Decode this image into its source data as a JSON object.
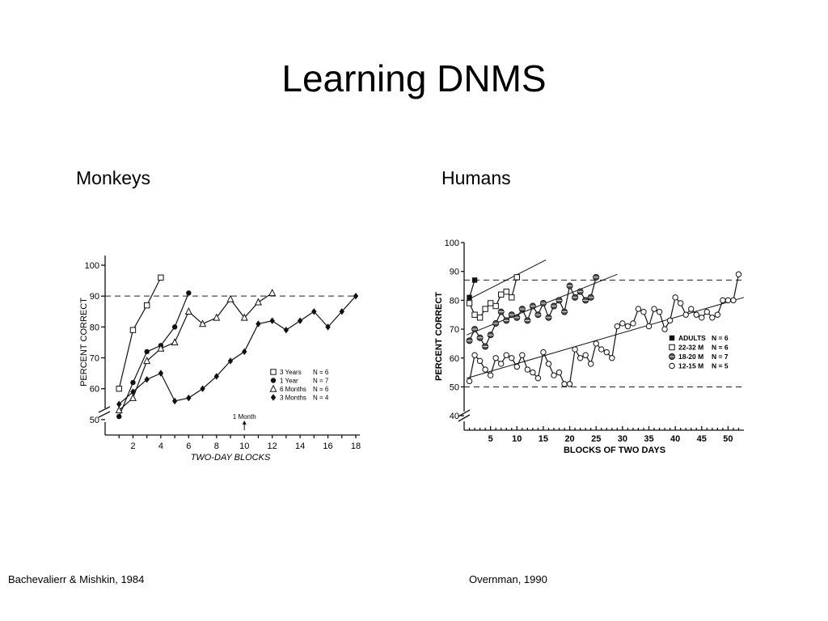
{
  "slide": {
    "title": "Learning DNMS",
    "left_heading": "Monkeys",
    "right_heading": "Humans",
    "left_citation": "Bachevalierr & Mishkin, 1984",
    "right_citation": "Overnman, 1990"
  },
  "chart_data": [
    {
      "type": "line",
      "xlabel": "TWO-DAY BLOCKS",
      "ylabel": "PERCENT CORRECT",
      "xlim": [
        0,
        18
      ],
      "ylim": [
        45,
        100
      ],
      "xticks": [
        2,
        4,
        6,
        8,
        10,
        12,
        14,
        16,
        18
      ],
      "yticks": [
        50,
        60,
        70,
        80,
        90,
        100
      ],
      "criterion": 90,
      "annotation": {
        "text": "1 Month",
        "x": 10
      },
      "legend_position": "bottom-right",
      "grid": false,
      "series": [
        {
          "name": "3 Years",
          "n": "N = 6",
          "marker": "open-square",
          "x": [
            1,
            2,
            3,
            4
          ],
          "y": [
            60,
            79,
            87,
            96
          ]
        },
        {
          "name": "1 Year",
          "n": "N = 7",
          "marker": "filled-circle",
          "x": [
            1,
            2,
            3,
            4,
            5,
            6
          ],
          "y": [
            51,
            62,
            72,
            74,
            80,
            91
          ]
        },
        {
          "name": "6 Months",
          "n": "N = 6",
          "marker": "open-triangle",
          "x": [
            1,
            2,
            3,
            4,
            5,
            6,
            7,
            8,
            9,
            10,
            11,
            12
          ],
          "y": [
            53,
            57,
            69,
            73,
            75,
            85,
            81,
            83,
            89,
            83,
            88,
            91
          ]
        },
        {
          "name": "3 Months",
          "n": "N = 4",
          "marker": "filled-diamond",
          "x": [
            1,
            2,
            3,
            4,
            5,
            6,
            7,
            8,
            9,
            10,
            11,
            12,
            13,
            14,
            15,
            16,
            17,
            18
          ],
          "y": [
            55,
            59,
            63,
            65,
            56,
            57,
            60,
            64,
            69,
            72,
            81,
            82,
            79,
            82,
            85,
            80,
            85,
            90
          ]
        }
      ]
    },
    {
      "type": "line",
      "xlabel": "BLOCKS OF TWO DAYS",
      "ylabel": "PERCENT CORRECT",
      "xlim": [
        0,
        53
      ],
      "ylim": [
        35,
        100
      ],
      "xticks": [
        5,
        10,
        15,
        20,
        25,
        30,
        35,
        40,
        45,
        50
      ],
      "yticks": [
        40,
        50,
        60,
        70,
        80,
        90,
        100
      ],
      "reference_lines": [
        87,
        50
      ],
      "legend_position": "right",
      "grid": false,
      "series": [
        {
          "name": "ADULTS",
          "n": "N = 6",
          "marker": "filled-square",
          "x": [
            1,
            2
          ],
          "y": [
            81,
            87
          ]
        },
        {
          "name": "22-32 M",
          "n": "N = 6",
          "marker": "open-square",
          "x": [
            1,
            2,
            3,
            4,
            5,
            6,
            7,
            8,
            9,
            10
          ],
          "y": [
            79,
            75,
            74,
            77,
            79,
            78,
            82,
            83,
            81,
            88
          ]
        },
        {
          "name": "18-20 M",
          "n": "N = 7",
          "marker": "crossed-circle",
          "x": [
            1,
            2,
            3,
            4,
            5,
            6,
            7,
            8,
            9,
            10,
            11,
            12,
            13,
            14,
            15,
            16,
            17,
            18,
            19,
            20,
            21,
            22,
            23,
            24,
            25
          ],
          "y": [
            66,
            70,
            67,
            64,
            68,
            72,
            76,
            73,
            75,
            74,
            77,
            73,
            78,
            75,
            79,
            74,
            78,
            80,
            76,
            85,
            81,
            83,
            80,
            81,
            88
          ]
        },
        {
          "name": "12-15 M",
          "n": "N = 5",
          "marker": "open-circle",
          "x": [
            1,
            2,
            3,
            4,
            5,
            6,
            7,
            8,
            9,
            10,
            11,
            12,
            13,
            14,
            15,
            16,
            17,
            18,
            19,
            20,
            21,
            22,
            23,
            24,
            25,
            26,
            27,
            28,
            29,
            30,
            31,
            32,
            33,
            34,
            35,
            36,
            37,
            38,
            39,
            40,
            41,
            42,
            43,
            44,
            45,
            46,
            47,
            48,
            49,
            50,
            51,
            52
          ],
          "y": [
            52,
            61,
            59,
            56,
            54,
            60,
            58,
            61,
            60,
            57,
            61,
            56,
            55,
            53,
            62,
            58,
            54,
            55,
            51,
            51,
            63,
            60,
            61,
            58,
            65,
            63,
            62,
            60,
            71,
            72,
            71,
            72,
            77,
            76,
            71,
            77,
            76,
            70,
            73,
            81,
            79,
            75,
            77,
            75,
            74,
            76,
            74,
            75,
            80,
            80,
            80,
            89
          ]
        }
      ]
    }
  ]
}
